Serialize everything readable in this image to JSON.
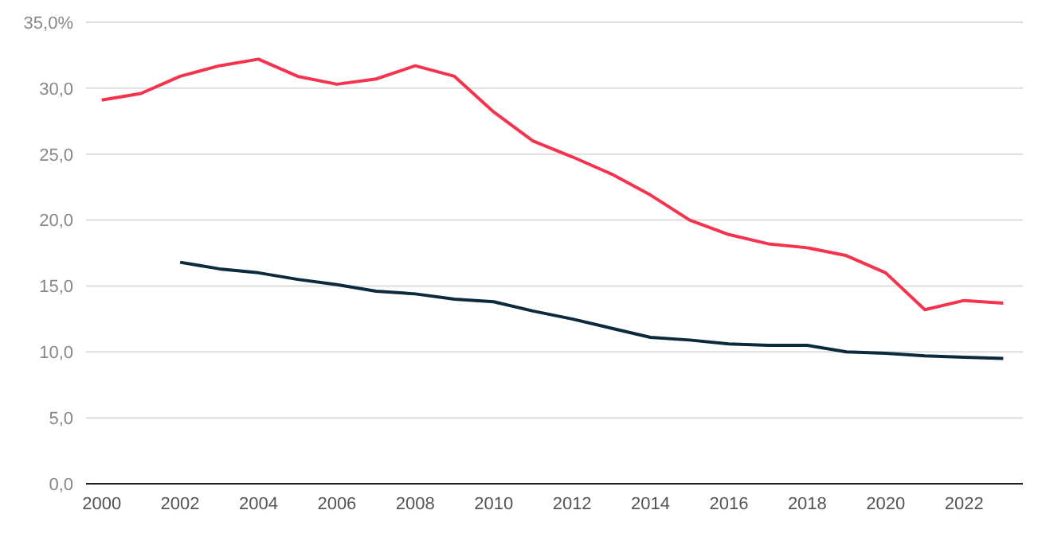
{
  "chart_data": {
    "type": "line",
    "x": [
      2000,
      2001,
      2002,
      2003,
      2004,
      2005,
      2006,
      2007,
      2008,
      2009,
      2010,
      2011,
      2012,
      2013,
      2014,
      2015,
      2016,
      2017,
      2018,
      2019,
      2020,
      2021,
      2022,
      2023
    ],
    "series": [
      {
        "color": "#f5334f",
        "values": [
          29.1,
          29.6,
          30.9,
          31.7,
          32.2,
          30.9,
          30.3,
          30.7,
          31.7,
          30.9,
          28.2,
          26.0,
          24.8,
          23.5,
          21.9,
          20.0,
          18.9,
          18.2,
          17.9,
          17.3,
          16.0,
          13.2,
          13.9,
          13.7
        ]
      },
      {
        "color": "#0b2a3c",
        "values": [
          null,
          null,
          16.8,
          16.3,
          16.0,
          15.5,
          15.1,
          14.6,
          14.4,
          14.0,
          13.8,
          13.1,
          12.5,
          11.8,
          11.1,
          10.9,
          10.6,
          10.5,
          10.5,
          10.0,
          9.9,
          9.7,
          9.6,
          9.5
        ]
      }
    ],
    "xlim": [
      1999.6,
      2023.5
    ],
    "xticks": [
      2000,
      2002,
      2004,
      2006,
      2008,
      2010,
      2012,
      2014,
      2016,
      2018,
      2020,
      2022
    ],
    "ylim": [
      0,
      35
    ],
    "yticks": [
      {
        "value": 0,
        "label": "0,0"
      },
      {
        "value": 5,
        "label": "5,0"
      },
      {
        "value": 10,
        "label": "10,0"
      },
      {
        "value": 15,
        "label": "15,0"
      },
      {
        "value": 20,
        "label": "20,0"
      },
      {
        "value": 25,
        "label": "25,0"
      },
      {
        "value": 30,
        "label": "30,0"
      },
      {
        "value": 35,
        "label": "35,0%"
      }
    ],
    "grid": "y",
    "marker": "none",
    "line_style": "solid",
    "legend": false
  }
}
